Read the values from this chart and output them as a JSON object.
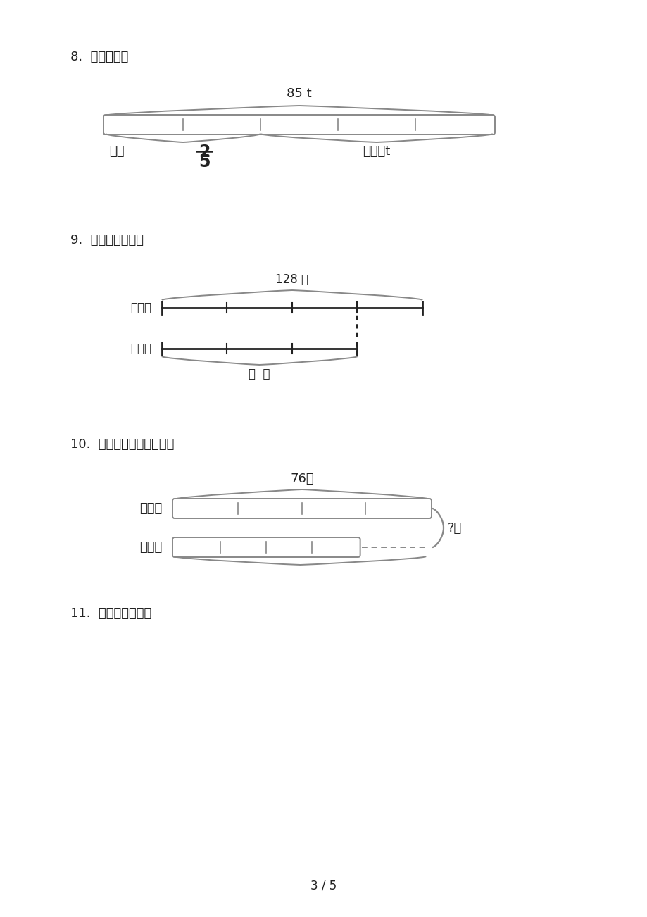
{
  "bg_color": "#ffffff",
  "text_color": "#000000",
  "page_number": "3 / 5",
  "q8_label": "8.  列式计算。",
  "q8_total": "85 t",
  "q8_left_label": "用去",
  "q8_frac_num": "2",
  "q8_frac_den": "5",
  "q8_right_label": "还剩？t",
  "q9_label": "9.  看图列式计算。",
  "q9_total": "128 棵",
  "q9_row1": "梨树：",
  "q9_row2": "桃树：",
  "q9_bottom": "？  棵",
  "q10_label": "10.  我能看图列式并计算。",
  "q10_total": "76元",
  "q10_row1": "桌子：",
  "q10_row2": "椅子：",
  "q10_right": "?元",
  "q11_label": "11.  看图列式计算。"
}
